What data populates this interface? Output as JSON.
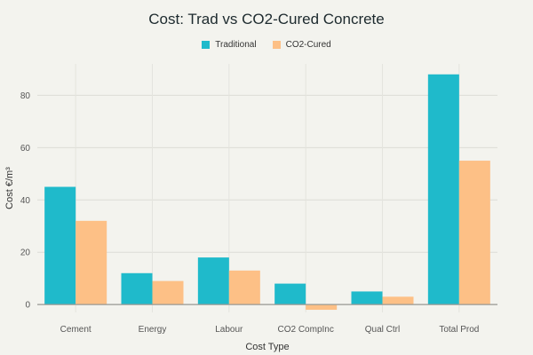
{
  "chart_data": {
    "type": "bar",
    "title": "Cost: Trad vs CO2-Cured Concrete",
    "xlabel": "Cost Type",
    "ylabel": "Cost €/m³",
    "categories": [
      "Cement",
      "Energy",
      "Labour",
      "CO2 CompInc",
      "Qual Ctrl",
      "Total Prod"
    ],
    "series": [
      {
        "name": "Traditional",
        "values": [
          45,
          12,
          18,
          8,
          5,
          88
        ],
        "color": "#1fbacb"
      },
      {
        "name": "CO2-Cured",
        "values": [
          32,
          9,
          13,
          -2,
          3,
          55
        ],
        "color": "#fdc086"
      }
    ],
    "ylim": [
      -3,
      92
    ],
    "yticks": [
      0,
      20,
      40,
      60,
      80
    ],
    "grid": true,
    "legend_position": "top-center"
  }
}
